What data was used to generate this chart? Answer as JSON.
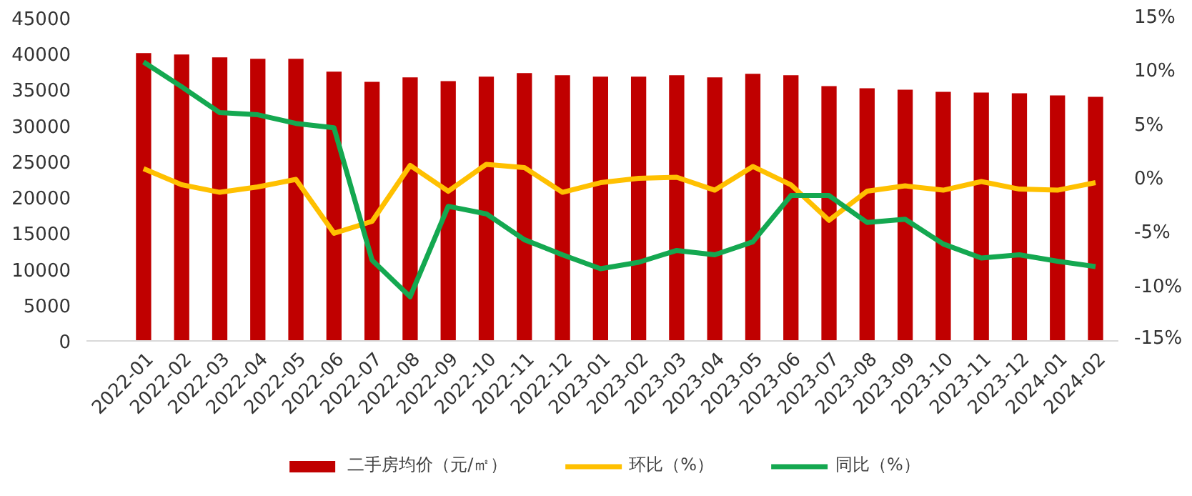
{
  "chart_data": {
    "type": "bar",
    "categories": [
      "2022-01",
      "2022-02",
      "2022-03",
      "2022-04",
      "2022-05",
      "2022-06",
      "2022-07",
      "2022-08",
      "2022-09",
      "2022-10",
      "2022-11",
      "2022-12",
      "2023-01",
      "2023-02",
      "2023-03",
      "2023-04",
      "2023-05",
      "2023-06",
      "2023-07",
      "2023-08",
      "2023-09",
      "2023-10",
      "2023-11",
      "2023-12",
      "2024-01",
      "2024-02"
    ],
    "series": [
      {
        "name": "二手房均价（元/㎡）",
        "color": "#c00000",
        "values": [
          40100,
          39900,
          39500,
          39300,
          39300,
          37500,
          36100,
          36700,
          36200,
          36800,
          37300,
          37000,
          36800,
          36800,
          37000,
          36700,
          37200,
          37000,
          35500,
          35200,
          35000,
          34700,
          34600,
          34500,
          34200,
          34000
        ]
      },
      {
        "name": "环比（%）",
        "type": "line",
        "axis": "y2",
        "color": "#ffc000",
        "values": [
          1.0,
          -0.5,
          -1.2,
          -0.7,
          0.0,
          -5.0,
          -3.9,
          1.3,
          -1.1,
          1.4,
          1.1,
          -1.2,
          -0.3,
          0.1,
          0.2,
          -1.0,
          1.2,
          -0.5,
          -3.8,
          -1.1,
          -0.6,
          -1.0,
          -0.2,
          -0.9,
          -1.0,
          -0.3
        ]
      },
      {
        "name": "同比（%）",
        "type": "line",
        "axis": "y2",
        "color": "#14a850",
        "values": [
          10.9,
          8.6,
          6.2,
          6.0,
          5.2,
          4.8,
          -7.5,
          -10.9,
          -2.5,
          -3.2,
          -5.6,
          -7.0,
          -8.3,
          -7.7,
          -6.6,
          -7.0,
          -5.8,
          -1.5,
          -1.5,
          -4.0,
          -3.7,
          -6.0,
          -7.3,
          -7.0,
          -7.6,
          -8.1
        ]
      }
    ],
    "ylim": [
      0,
      45000
    ],
    "yticks": [
      0,
      5000,
      10000,
      15000,
      20000,
      25000,
      30000,
      35000,
      40000,
      45000
    ],
    "y2lim": [
      -15,
      15
    ],
    "y2ticks": [
      {
        "value": -15,
        "label": "-15%"
      },
      {
        "value": -10,
        "label": "-10%"
      },
      {
        "value": -5,
        "label": "-5%"
      },
      {
        "value": 0,
        "label": "0%"
      },
      {
        "value": 5,
        "label": "5%"
      },
      {
        "value": 10,
        "label": "10%"
      },
      {
        "value": 15,
        "label": "15%"
      }
    ],
    "grid": false,
    "legend": "bottom",
    "marker": "none",
    "line_style": "solid"
  }
}
